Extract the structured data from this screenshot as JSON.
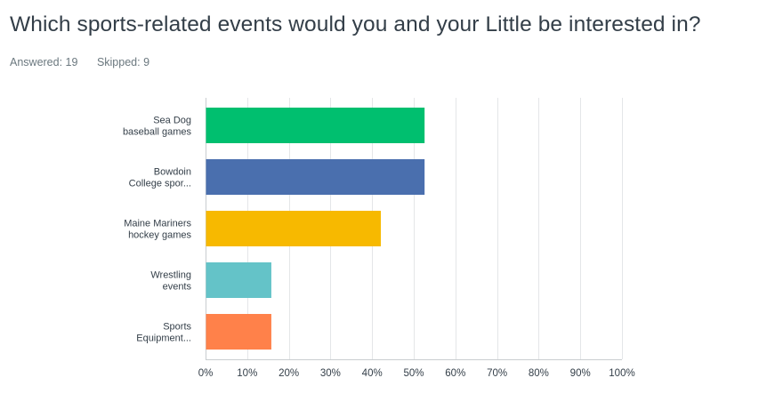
{
  "question": {
    "title": "Which sports-related events would you and your Little be interested in?",
    "answered_label": "Answered:",
    "answered_count": "19",
    "skipped_label": "Skipped:",
    "skipped_count": "9"
  },
  "chart_data": {
    "type": "bar",
    "orientation": "horizontal",
    "categories": [
      [
        "Sea Dog",
        "baseball games"
      ],
      [
        "Bowdoin",
        "College spor..."
      ],
      [
        "Maine Mariners",
        "hockey games"
      ],
      [
        "Wrestling",
        "events"
      ],
      [
        "Sports",
        "Equipment..."
      ]
    ],
    "values": [
      52.6,
      52.6,
      42.1,
      15.8,
      15.8
    ],
    "colors": [
      "#00bf6f",
      "#4a6fae",
      "#f7b900",
      "#64c3c8",
      "#ff814a"
    ],
    "xlim": [
      0,
      100
    ],
    "xticks": [
      "0%",
      "10%",
      "20%",
      "30%",
      "40%",
      "50%",
      "60%",
      "70%",
      "80%",
      "90%",
      "100%"
    ],
    "grid": true,
    "title": "",
    "xlabel": "",
    "ylabel": ""
  }
}
